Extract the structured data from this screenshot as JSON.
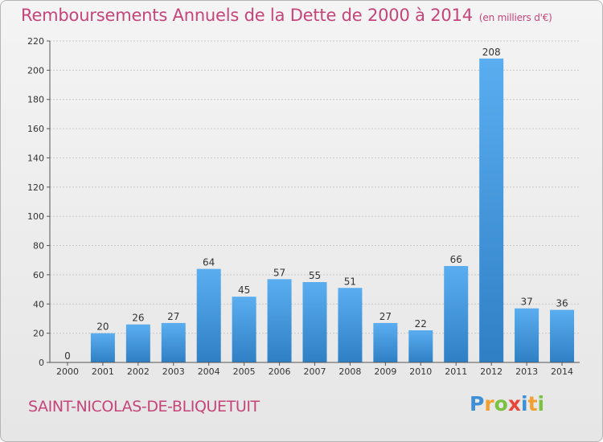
{
  "header": {
    "title": "Remboursements Annuels de la Dette de 2000 à 2014",
    "subtitle": "(en milliers d'€)"
  },
  "footer": {
    "commune": "SAINT-NICOLAS-DE-BLIQUETUIT",
    "logo_text": "Proxiti"
  },
  "colors": {
    "bar_light": "#5aaef0",
    "bar_dark": "#2f7fc4",
    "title": "#c5457a",
    "grid": "#c8c8c8"
  },
  "chart_data": {
    "type": "bar",
    "title": "Remboursements Annuels de la Dette de 2000 à 2014",
    "subtitle": "(en milliers d'€)",
    "xlabel": "",
    "ylabel": "",
    "categories": [
      "2000",
      "2001",
      "2002",
      "2003",
      "2004",
      "2005",
      "2006",
      "2007",
      "2008",
      "2009",
      "2010",
      "2011",
      "2012",
      "2013",
      "2014"
    ],
    "values": [
      0,
      20,
      26,
      27,
      64,
      45,
      57,
      55,
      51,
      27,
      22,
      66,
      208,
      37,
      36
    ],
    "data_labels": [
      "0",
      "20",
      "26",
      "27",
      "64",
      "45",
      "57",
      "55",
      "51",
      "27",
      "22",
      "66",
      "208",
      "37",
      "36"
    ],
    "ylim": [
      0,
      220
    ],
    "yticks": [
      "0",
      "20",
      "40",
      "60",
      "80",
      "100",
      "120",
      "140",
      "160",
      "180",
      "200",
      "220"
    ],
    "grid": true,
    "legend": "none"
  }
}
